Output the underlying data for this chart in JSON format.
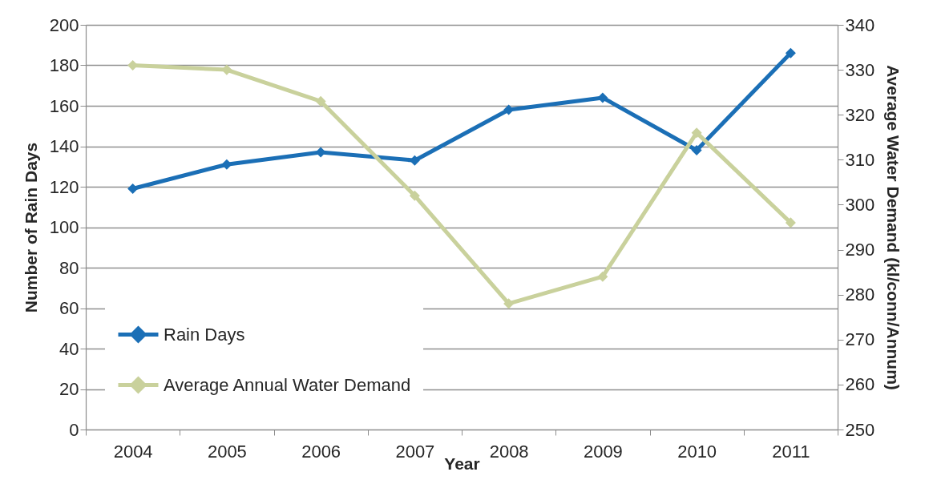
{
  "chart_data": {
    "type": "line",
    "xlabel": "Year",
    "ylabel": "Number of Rain Days",
    "y2label": "Average Water Demand (kl/conn/Annum)",
    "categories": [
      "2004",
      "2005",
      "2006",
      "2007",
      "2008",
      "2009",
      "2010",
      "2011"
    ],
    "series": [
      {
        "name": "Rain Days",
        "color": "#1b6fb6",
        "values": [
          119,
          131,
          137,
          133,
          158,
          164,
          138,
          186
        ]
      },
      {
        "name": "Average Annual Water Demand",
        "color": "#c9d19c",
        "axis": "y2",
        "values": [
          331,
          330,
          323,
          302,
          278,
          284,
          316,
          296
        ]
      }
    ],
    "ylim": [
      0,
      200
    ],
    "yticks": [
      0,
      20,
      40,
      60,
      80,
      100,
      120,
      140,
      160,
      180,
      200
    ],
    "y2lim": [
      250,
      340
    ],
    "y2ticks": [
      250,
      260,
      270,
      280,
      290,
      300,
      310,
      320,
      330,
      340
    ],
    "grid": "y",
    "legend": "bottom left",
    "marker": "diamond",
    "line_style": "solid"
  }
}
